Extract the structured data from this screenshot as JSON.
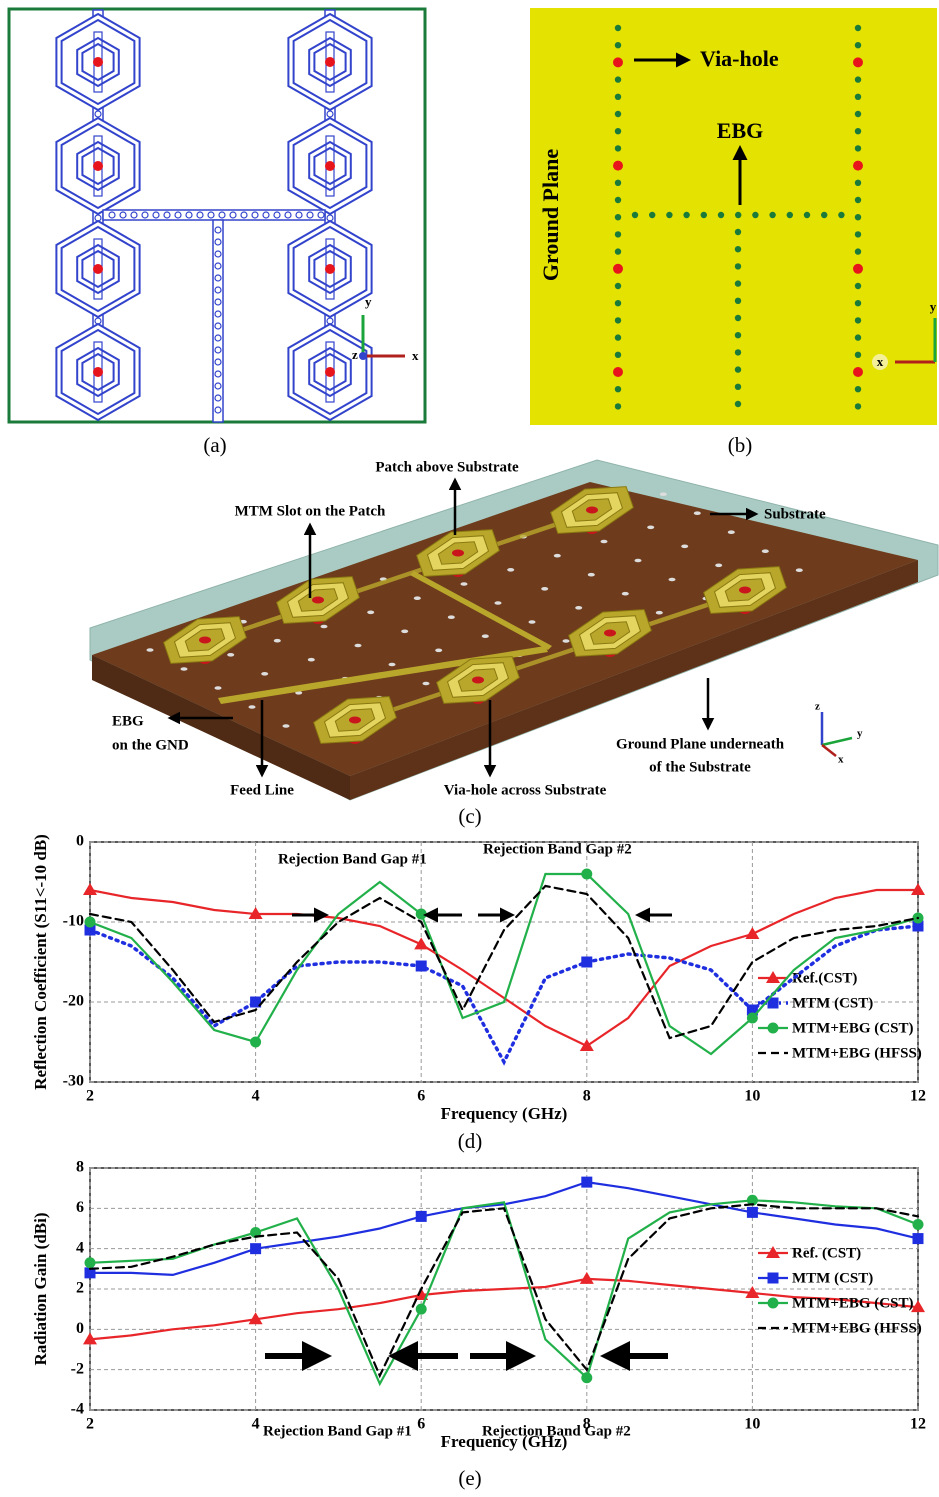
{
  "figure": {
    "panel_a": {
      "label": "(a)",
      "axes": [
        "y",
        "z",
        "x"
      ]
    },
    "panel_b": {
      "label": "(b)",
      "via_hole": "Via-hole",
      "ebg": "EBG",
      "ground_plane": "Ground Plane",
      "axes": [
        "y",
        "x"
      ]
    },
    "panel_c": {
      "label": "(c)",
      "patch": "Patch above Substrate",
      "slot": "MTM Slot on the Patch",
      "substrate": "Substrate",
      "ebg": [
        "EBG",
        "on the GND"
      ],
      "feed": "Feed Line",
      "via": "Via-hole across Substrate",
      "ground": [
        "Ground Plane underneath",
        "of the Substrate"
      ],
      "axes": [
        "z",
        "y",
        "x"
      ]
    }
  },
  "chart_data": [
    {
      "type": "line",
      "panel_label": "(d)",
      "x_label": "Frequency (GHz)",
      "y_label": "Reflection Coefficient (S11<-10 dB)",
      "x": [
        2,
        2.5,
        3,
        3.5,
        4,
        4.5,
        5,
        5.5,
        6,
        6.5,
        7,
        7.5,
        8,
        8.5,
        9,
        9.5,
        10,
        10.5,
        11,
        11.5,
        12
      ],
      "xlim": [
        2,
        12
      ],
      "xticks": [
        2,
        4,
        6,
        8,
        10,
        12
      ],
      "ylim": [
        -30,
        0
      ],
      "yticks": [
        -30,
        -20,
        -10,
        0
      ],
      "grid": true,
      "legend": "right",
      "annotations": [
        "Rejection Band Gap #1",
        "Rejection Band Gap #2"
      ],
      "series": [
        {
          "name": "Ref.(CST)",
          "color": "#e8262a",
          "line_style": "solid",
          "marker": "triangle",
          "values": [
            -6,
            -7,
            -7.5,
            -8.5,
            -9,
            -9,
            -9.5,
            -10.5,
            -12.8,
            -16,
            -19.5,
            -23,
            -25.5,
            -22,
            -15.5,
            -13,
            -11.5,
            -9,
            -7,
            -6,
            -6
          ]
        },
        {
          "name": "MTM (CST)",
          "color": "#1f2fe0",
          "line_style": "dotted",
          "marker": "square",
          "values": [
            -11,
            -13,
            -17,
            -23,
            -20,
            -15.5,
            -15,
            -15,
            -15.5,
            -18,
            -27.5,
            -17,
            -15,
            -14,
            -14.5,
            -16,
            -21,
            -17,
            -13,
            -11,
            -10.5
          ]
        },
        {
          "name": "MTM+EBG (CST)",
          "color": "#22b04a",
          "line_style": "solid",
          "marker": "circle",
          "values": [
            -10,
            -12,
            -17.5,
            -23.5,
            -25,
            -16,
            -9,
            -5,
            -9,
            -22,
            -20,
            -4,
            -4,
            -9,
            -23,
            -26.5,
            -22,
            -16,
            -12,
            -11,
            -9.5
          ]
        },
        {
          "name": "MTM+EBG (HFSS)",
          "color": "#000000",
          "line_style": "dashed",
          "marker": null,
          "values": [
            -9,
            -10,
            -16,
            -22.5,
            -21,
            -15,
            -10,
            -7,
            -10,
            -21,
            -11,
            -5.5,
            -6.5,
            -12,
            -24.5,
            -23,
            -15,
            -12,
            -11,
            -10.5,
            -9.5
          ]
        }
      ]
    },
    {
      "type": "line",
      "panel_label": "(e)",
      "x_label": "Frequency (GHz)",
      "y_label": "Radiation Gain (dBi)",
      "x": [
        2,
        2.5,
        3,
        3.5,
        4,
        4.5,
        5,
        5.5,
        6,
        6.5,
        7,
        7.5,
        8,
        8.5,
        9,
        9.5,
        10,
        10.5,
        11,
        11.5,
        12
      ],
      "xlim": [
        2,
        12
      ],
      "xticks": [
        2,
        4,
        6,
        8,
        10,
        12
      ],
      "ylim": [
        -4,
        8
      ],
      "yticks": [
        -4,
        -2,
        0,
        2,
        4,
        6,
        8
      ],
      "grid": true,
      "legend": "right",
      "annotations": [
        "Rejection Band Gap #1",
        "Rejection Band Gap #2"
      ],
      "series": [
        {
          "name": "Ref. (CST)",
          "color": "#e8262a",
          "line_style": "solid",
          "marker": "triangle",
          "values": [
            -0.5,
            -0.3,
            0,
            0.2,
            0.5,
            0.8,
            1,
            1.3,
            1.7,
            1.9,
            2,
            2.1,
            2.5,
            2.4,
            2.2,
            2,
            1.8,
            1.6,
            1.5,
            1.3,
            1.1
          ]
        },
        {
          "name": "MTM (CST)",
          "color": "#1f2fe0",
          "line_style": "solid",
          "marker": "square",
          "values": [
            2.8,
            2.8,
            2.7,
            3.3,
            4,
            4.3,
            4.6,
            5,
            5.6,
            6,
            6.2,
            6.6,
            7.3,
            7,
            6.6,
            6.2,
            5.8,
            5.5,
            5.2,
            5,
            4.5
          ]
        },
        {
          "name": "MTM+EBG (CST)",
          "color": "#22b04a",
          "line_style": "solid",
          "marker": "circle",
          "values": [
            3.3,
            3.4,
            3.5,
            4.2,
            4.8,
            5.5,
            2,
            -2.7,
            1,
            6,
            6.3,
            -0.5,
            -2.4,
            4.5,
            5.8,
            6.2,
            6.4,
            6.3,
            6.1,
            6,
            5.2
          ]
        },
        {
          "name": "MTM+EBG (HFSS)",
          "color": "#000000",
          "line_style": "dashed",
          "marker": null,
          "values": [
            3,
            3.1,
            3.6,
            4.2,
            4.6,
            4.8,
            2.5,
            -2.3,
            2,
            5.8,
            6,
            0.5,
            -2,
            3.5,
            5.5,
            6,
            6.2,
            6,
            6,
            6,
            5.6
          ]
        }
      ]
    }
  ]
}
